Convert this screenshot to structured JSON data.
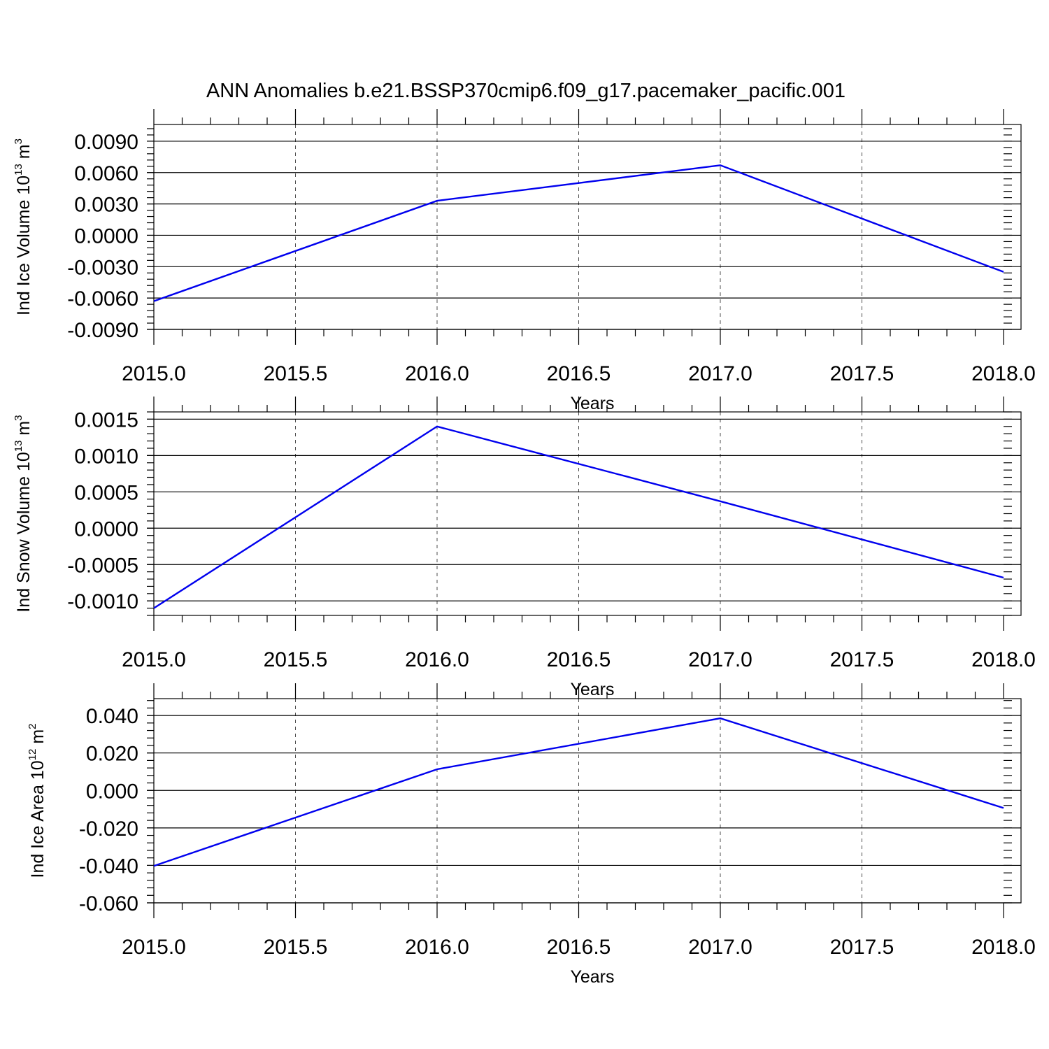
{
  "title": "ANN Anomalies b.e21.BSSP370cmip6.f09_g17.pacemaker_pacific.001",
  "chart_data": [
    {
      "type": "line",
      "title": "",
      "xlabel": "Years",
      "ylabel": {
        "main": "Ind Ice Volume 10",
        "exp": "13",
        "unit": " m",
        "unit_exp": "3"
      },
      "xlim": [
        2015.0,
        2018.0
      ],
      "ylim": [
        -0.009,
        0.0106
      ],
      "xticks": [
        "2015.0",
        "2015.5",
        "2016.0",
        "2016.5",
        "2017.0",
        "2017.5",
        "2018.0"
      ],
      "yticks": [
        "0.0090",
        "0.0060",
        "0.0030",
        "0.0000",
        "-0.0030",
        "-0.0060",
        "-0.0090"
      ],
      "ytick_values": [
        0.009,
        0.006,
        0.003,
        0.0,
        -0.003,
        -0.006,
        -0.009
      ],
      "grid": "vertical dashed",
      "color": "#0000ee",
      "series": [
        {
          "x": [
            2015,
            2016,
            2017,
            2018
          ],
          "values": [
            -0.0063,
            0.0033,
            0.0067,
            -0.0035
          ]
        }
      ]
    },
    {
      "type": "line",
      "title": "",
      "xlabel": "Years",
      "ylabel": {
        "main": "Ind Snow Volume 10",
        "exp": "13",
        "unit": " m",
        "unit_exp": "3"
      },
      "xlim": [
        2015.0,
        2018.0
      ],
      "ylim": [
        -0.0012,
        0.0016
      ],
      "xticks": [
        "2015.0",
        "2015.5",
        "2016.0",
        "2016.5",
        "2017.0",
        "2017.5",
        "2018.0"
      ],
      "yticks": [
        "0.0015",
        "0.0010",
        "0.0005",
        "0.0000",
        "-0.0005",
        "-0.0010"
      ],
      "ytick_values": [
        0.0015,
        0.001,
        0.0005,
        0.0,
        -0.0005,
        -0.001
      ],
      "grid": "vertical dashed",
      "color": "#0000ee",
      "series": [
        {
          "x": [
            2015,
            2016,
            2017,
            2018
          ],
          "values": [
            -0.0011,
            0.0014,
            0.00037,
            -0.00068
          ]
        }
      ]
    },
    {
      "type": "line",
      "title": "",
      "xlabel": "Years",
      "ylabel": {
        "main": "Ind Ice Area 10",
        "exp": "12",
        "unit": " m",
        "unit_exp": "2"
      },
      "xlim": [
        2015.0,
        2018.0
      ],
      "ylim": [
        -0.06,
        0.049
      ],
      "xticks": [
        "2015.0",
        "2015.5",
        "2016.0",
        "2016.5",
        "2017.0",
        "2017.5",
        "2018.0"
      ],
      "yticks": [
        "0.040",
        "0.020",
        "0.000",
        "-0.020",
        "-0.040",
        "-0.060"
      ],
      "ytick_values": [
        0.04,
        0.02,
        0.0,
        -0.02,
        -0.04,
        -0.06
      ],
      "grid": "vertical dashed",
      "color": "#0000ee",
      "series": [
        {
          "x": [
            2015,
            2016,
            2017,
            2018
          ],
          "values": [
            -0.0403,
            0.0113,
            0.0385,
            -0.0094
          ]
        }
      ]
    }
  ]
}
